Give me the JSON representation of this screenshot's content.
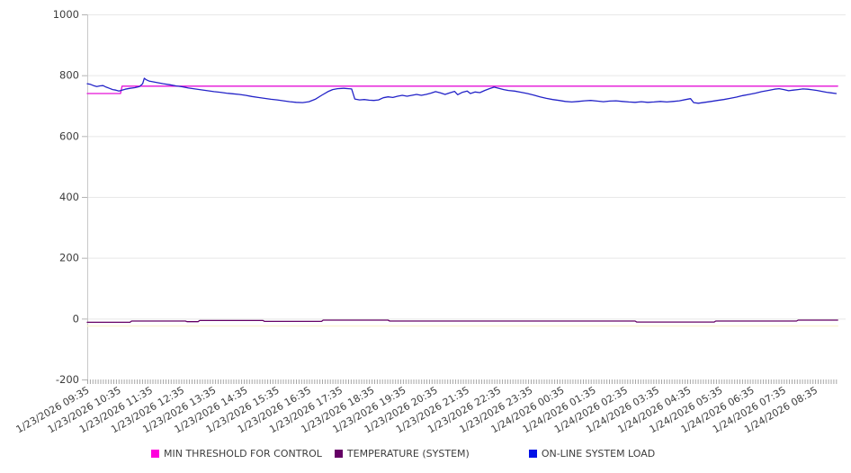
{
  "chart_data": {
    "type": "line",
    "title": "",
    "grid": true,
    "legend_position": "bottom",
    "y_axis": {
      "ticks": [
        1000,
        800,
        600,
        400,
        200,
        0,
        -200
      ],
      "range": [
        -200,
        1000
      ]
    },
    "x_axis": {
      "labels": [
        "1/23/2026 09:35",
        "1/23/2026 10:35",
        "1/23/2026 11:35",
        "1/23/2026 12:35",
        "1/23/2026 13:35",
        "1/23/2026 14:35",
        "1/23/2026 15:35",
        "1/23/2026 16:35",
        "1/23/2026 17:35",
        "1/23/2026 18:35",
        "1/23/2026 19:35",
        "1/23/2026 20:35",
        "1/23/2026 21:35",
        "1/23/2026 22:35",
        "1/23/2026 23:35",
        "1/24/2026 00:35",
        "1/24/2026 01:35",
        "1/24/2026 02:35",
        "1/24/2026 03:35",
        "1/24/2026 04:35",
        "1/24/2026 05:35",
        "1/24/2026 06:35",
        "1/24/2026 07:35",
        "1/24/2026 08:35"
      ],
      "hours_span": 23.7
    },
    "series": [
      {
        "name": "MIN THRESHOLD FOR CONTROL",
        "color": "#e511d8",
        "legend_color": "#ff00dd",
        "in_legend": true,
        "points": [
          [
            0,
            740
          ],
          [
            1.05,
            740
          ],
          [
            1.1,
            764
          ],
          [
            23.7,
            764
          ]
        ]
      },
      {
        "name": "TEMPERATURE (SYSTEM)",
        "color": "#650065",
        "legend_color": "#650065",
        "in_legend": true,
        "points": [
          [
            0,
            -12
          ],
          [
            1.35,
            -12
          ],
          [
            1.4,
            -8
          ],
          [
            3.1,
            -8
          ],
          [
            3.15,
            -10
          ],
          [
            3.5,
            -10
          ],
          [
            3.55,
            -6
          ],
          [
            5.55,
            -6
          ],
          [
            5.6,
            -9
          ],
          [
            7.4,
            -9
          ],
          [
            7.45,
            -5
          ],
          [
            9.5,
            -5
          ],
          [
            9.55,
            -8
          ],
          [
            17.3,
            -8
          ],
          [
            17.35,
            -11
          ],
          [
            19.8,
            -11
          ],
          [
            19.85,
            -8
          ],
          [
            22.4,
            -8
          ],
          [
            22.45,
            -5
          ],
          [
            23.7,
            -5
          ]
        ]
      },
      {
        "name": "ON-LINE SYSTEM LOAD",
        "color": "#2323c8",
        "legend_color": "#0011e6",
        "in_legend": true,
        "points": [
          [
            0,
            772
          ],
          [
            0.1,
            770
          ],
          [
            0.2,
            766
          ],
          [
            0.3,
            763
          ],
          [
            0.4,
            765
          ],
          [
            0.5,
            766
          ],
          [
            0.6,
            761
          ],
          [
            0.7,
            757
          ],
          [
            0.8,
            753
          ],
          [
            0.9,
            751
          ],
          [
            1.0,
            748
          ],
          [
            1.1,
            751
          ],
          [
            1.2,
            754
          ],
          [
            1.35,
            757
          ],
          [
            1.5,
            759
          ],
          [
            1.65,
            763
          ],
          [
            1.75,
            772
          ],
          [
            1.8,
            790
          ],
          [
            1.85,
            786
          ],
          [
            1.95,
            781
          ],
          [
            2.1,
            778
          ],
          [
            2.25,
            775
          ],
          [
            2.4,
            772
          ],
          [
            2.6,
            769
          ],
          [
            2.8,
            765
          ],
          [
            3.0,
            762
          ],
          [
            3.2,
            758
          ],
          [
            3.4,
            755
          ],
          [
            3.6,
            752
          ],
          [
            3.8,
            749
          ],
          [
            4.0,
            746
          ],
          [
            4.2,
            744
          ],
          [
            4.4,
            741
          ],
          [
            4.6,
            739
          ],
          [
            4.8,
            737
          ],
          [
            5.0,
            734
          ],
          [
            5.2,
            730
          ],
          [
            5.4,
            727
          ],
          [
            5.6,
            724
          ],
          [
            5.8,
            721
          ],
          [
            6.0,
            719
          ],
          [
            6.2,
            716
          ],
          [
            6.4,
            713
          ],
          [
            6.6,
            711
          ],
          [
            6.8,
            710
          ],
          [
            7.0,
            713
          ],
          [
            7.2,
            721
          ],
          [
            7.4,
            734
          ],
          [
            7.6,
            746
          ],
          [
            7.75,
            753
          ],
          [
            7.9,
            756
          ],
          [
            8.1,
            757
          ],
          [
            8.25,
            756
          ],
          [
            8.35,
            755
          ],
          [
            8.45,
            722
          ],
          [
            8.6,
            719
          ],
          [
            8.75,
            720
          ],
          [
            8.9,
            718
          ],
          [
            9.05,
            717
          ],
          [
            9.2,
            719
          ],
          [
            9.35,
            726
          ],
          [
            9.5,
            729
          ],
          [
            9.65,
            727
          ],
          [
            9.8,
            731
          ],
          [
            9.95,
            734
          ],
          [
            10.1,
            731
          ],
          [
            10.25,
            734
          ],
          [
            10.4,
            737
          ],
          [
            10.55,
            734
          ],
          [
            10.7,
            737
          ],
          [
            10.85,
            741
          ],
          [
            11.0,
            746
          ],
          [
            11.15,
            742
          ],
          [
            11.3,
            737
          ],
          [
            11.45,
            742
          ],
          [
            11.6,
            747
          ],
          [
            11.7,
            736
          ],
          [
            11.85,
            744
          ],
          [
            12.0,
            748
          ],
          [
            12.1,
            740
          ],
          [
            12.25,
            745
          ],
          [
            12.4,
            743
          ],
          [
            12.55,
            750
          ],
          [
            12.7,
            756
          ],
          [
            12.85,
            761
          ],
          [
            13.0,
            757
          ],
          [
            13.15,
            753
          ],
          [
            13.3,
            750
          ],
          [
            13.5,
            748
          ],
          [
            13.7,
            744
          ],
          [
            13.9,
            740
          ],
          [
            14.1,
            735
          ],
          [
            14.3,
            729
          ],
          [
            14.5,
            724
          ],
          [
            14.7,
            720
          ],
          [
            14.9,
            717
          ],
          [
            15.1,
            714
          ],
          [
            15.3,
            712
          ],
          [
            15.5,
            714
          ],
          [
            15.7,
            716
          ],
          [
            15.9,
            717
          ],
          [
            16.1,
            715
          ],
          [
            16.3,
            713
          ],
          [
            16.5,
            715
          ],
          [
            16.7,
            716
          ],
          [
            16.9,
            714
          ],
          [
            17.1,
            712
          ],
          [
            17.3,
            711
          ],
          [
            17.5,
            713
          ],
          [
            17.7,
            711
          ],
          [
            17.9,
            712
          ],
          [
            18.1,
            714
          ],
          [
            18.3,
            712
          ],
          [
            18.5,
            714
          ],
          [
            18.7,
            716
          ],
          [
            18.9,
            720
          ],
          [
            19.05,
            723
          ],
          [
            19.15,
            710
          ],
          [
            19.3,
            708
          ],
          [
            19.5,
            711
          ],
          [
            19.7,
            714
          ],
          [
            19.9,
            717
          ],
          [
            20.1,
            720
          ],
          [
            20.3,
            724
          ],
          [
            20.5,
            728
          ],
          [
            20.7,
            733
          ],
          [
            20.9,
            737
          ],
          [
            21.1,
            741
          ],
          [
            21.3,
            746
          ],
          [
            21.5,
            750
          ],
          [
            21.7,
            754
          ],
          [
            21.85,
            756
          ],
          [
            22.0,
            753
          ],
          [
            22.15,
            749
          ],
          [
            22.3,
            751
          ],
          [
            22.45,
            753
          ],
          [
            22.6,
            755
          ],
          [
            22.75,
            754
          ],
          [
            22.9,
            752
          ],
          [
            23.05,
            750
          ],
          [
            23.2,
            747
          ],
          [
            23.35,
            744
          ],
          [
            23.5,
            742
          ],
          [
            23.65,
            740
          ]
        ]
      },
      {
        "name": "",
        "color": "#faf4d4",
        "in_legend": false,
        "points": [
          [
            0,
            -24
          ],
          [
            23.7,
            -24
          ]
        ]
      }
    ]
  }
}
